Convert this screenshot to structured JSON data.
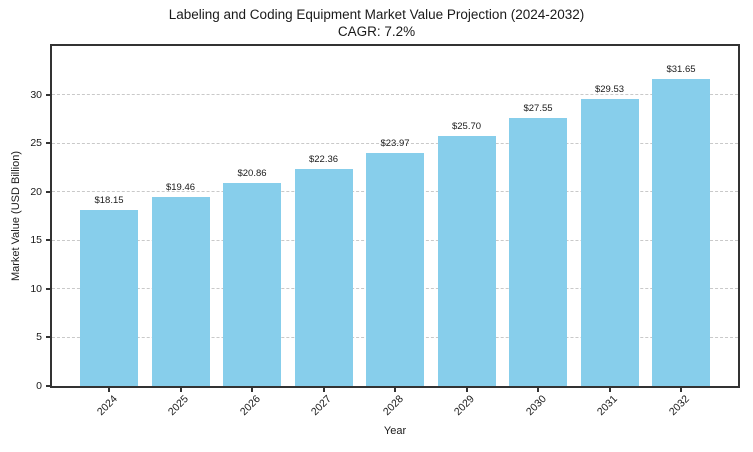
{
  "chart_data": {
    "type": "bar",
    "title": "Labeling and Coding Equipment Market Value Projection (2024-2032)",
    "subtitle": "CAGR: 7.2%",
    "xlabel": "Year",
    "ylabel": "Market Value (USD Billion)",
    "categories": [
      "2024",
      "2025",
      "2026",
      "2027",
      "2028",
      "2029",
      "2030",
      "2031",
      "2032"
    ],
    "values": [
      18.15,
      19.46,
      20.86,
      22.36,
      23.97,
      25.7,
      27.55,
      29.53,
      31.65
    ],
    "bar_labels": [
      "$18.15",
      "$19.46",
      "$20.86",
      "$22.36",
      "$23.97",
      "$25.70",
      "$27.55",
      "$29.53",
      "$31.65"
    ],
    "yticks": [
      0,
      5,
      10,
      15,
      20,
      25,
      30
    ],
    "ylim": [
      0,
      35
    ],
    "grid": "horizontal-dashed",
    "legend_position": "none",
    "colors": {
      "bar": "#87CEEB",
      "spine": "#333333",
      "grid": "#c9c9c9",
      "text": "#1a1a1a"
    }
  }
}
